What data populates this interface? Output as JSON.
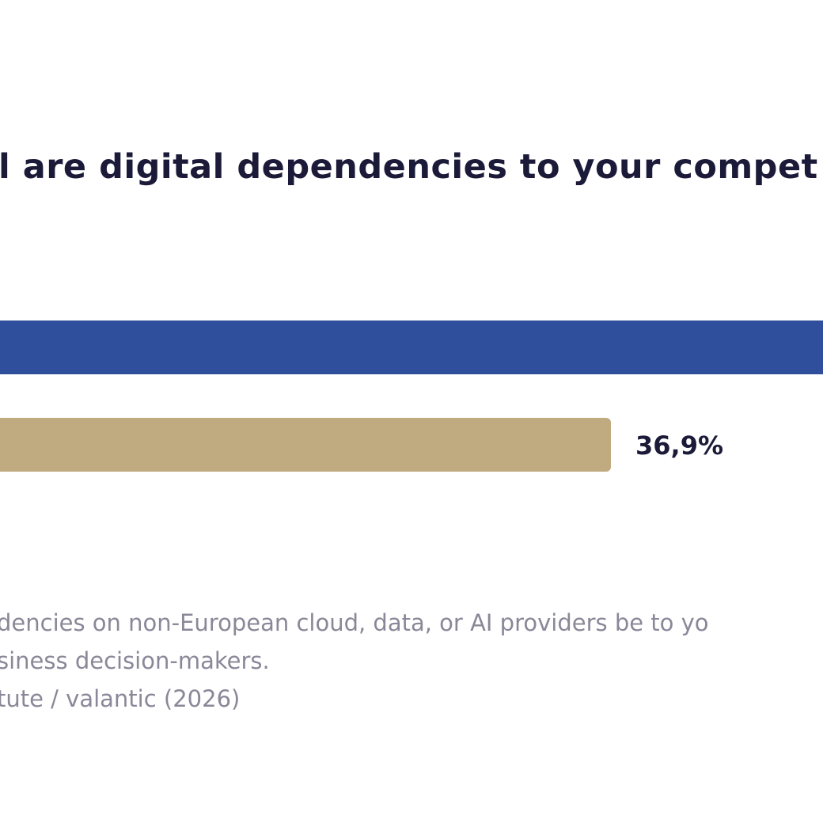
{
  "chart_data": {
    "type": "bar",
    "orientation": "horizontal",
    "title": "l are digital dependencies to your compet",
    "series": [
      {
        "values": [
          null,
          36.9
        ],
        "colors": [
          "#2f4f9c",
          "#c0aa80"
        ]
      }
    ],
    "data_labels": [
      "",
      "36,9%"
    ],
    "grid": false
  },
  "footnotes": [
    "dencies on non-European cloud, data, or AI providers be to yo",
    "siness decision-makers.",
    "tute / valantic (2026)"
  ],
  "colors": {
    "title": "#1b1a38",
    "label": "#1b1a38",
    "footnote": "#8a8898",
    "background": "#ffffff"
  }
}
